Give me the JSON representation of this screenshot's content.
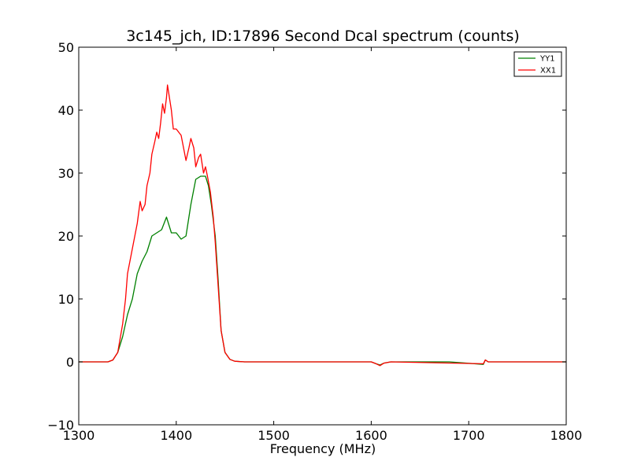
{
  "chart_data": {
    "type": "line",
    "title": "3c145_jch, ID:17896 Second Dcal spectrum (counts)",
    "xlabel": "Frequency (MHz)",
    "ylabel": "",
    "xlim": [
      1300,
      1800
    ],
    "ylim": [
      -10,
      50
    ],
    "xticks": [
      "1300",
      "1400",
      "1500",
      "1600",
      "1700",
      "1800"
    ],
    "yticks": [
      "−10",
      "0",
      "10",
      "20",
      "30",
      "40",
      "50"
    ],
    "grid": false,
    "legend_position": "top-right",
    "series": [
      {
        "name": "YY1",
        "color": "#008000",
        "x": [
          1300,
          1330,
          1335,
          1340,
          1345,
          1350,
          1355,
          1360,
          1365,
          1370,
          1375,
          1380,
          1385,
          1390,
          1392,
          1395,
          1400,
          1405,
          1410,
          1415,
          1420,
          1425,
          1430,
          1433,
          1436,
          1440,
          1443,
          1446,
          1450,
          1455,
          1460,
          1470,
          1500,
          1550,
          1600,
          1605,
          1609,
          1613,
          1620,
          1680,
          1715,
          1717,
          1720,
          1800
        ],
        "y": [
          0,
          0,
          0.3,
          1.5,
          4,
          7.5,
          10,
          14,
          16,
          17.5,
          20,
          20.5,
          21,
          23,
          22,
          20.5,
          20.5,
          19.5,
          20,
          25,
          29,
          29.5,
          29.5,
          28,
          25,
          20,
          13,
          5,
          1.5,
          0.4,
          0.1,
          0,
          0,
          0,
          0,
          -0.3,
          -0.5,
          -0.2,
          0,
          0,
          -0.4,
          0.3,
          0,
          0
        ]
      },
      {
        "name": "XX1",
        "color": "#ff0000",
        "x": [
          1300,
          1330,
          1335,
          1340,
          1345,
          1348,
          1350,
          1355,
          1360,
          1363,
          1365,
          1368,
          1370,
          1373,
          1375,
          1378,
          1380,
          1382,
          1384,
          1386,
          1388,
          1390,
          1391,
          1393,
          1395,
          1397,
          1400,
          1405,
          1410,
          1413,
          1415,
          1418,
          1420,
          1423,
          1425,
          1428,
          1430,
          1432,
          1435,
          1438,
          1440,
          1443,
          1446,
          1450,
          1455,
          1460,
          1470,
          1500,
          1600,
          1605,
          1609,
          1613,
          1620,
          1715,
          1717,
          1720,
          1800
        ],
        "y": [
          0,
          0,
          0.3,
          1.5,
          6,
          10,
          14,
          18,
          22,
          25.5,
          24,
          25,
          28,
          30,
          33,
          35,
          36.5,
          35.5,
          38,
          41,
          39.5,
          42,
          44,
          42,
          40,
          37,
          37,
          36,
          32,
          34,
          35.5,
          34,
          31,
          32.5,
          33,
          30,
          31,
          29.5,
          27,
          23,
          19,
          12,
          5,
          1.5,
          0.4,
          0.1,
          0,
          0,
          0,
          -0.3,
          -0.6,
          -0.2,
          0,
          -0.3,
          0.3,
          0,
          0
        ]
      }
    ]
  }
}
